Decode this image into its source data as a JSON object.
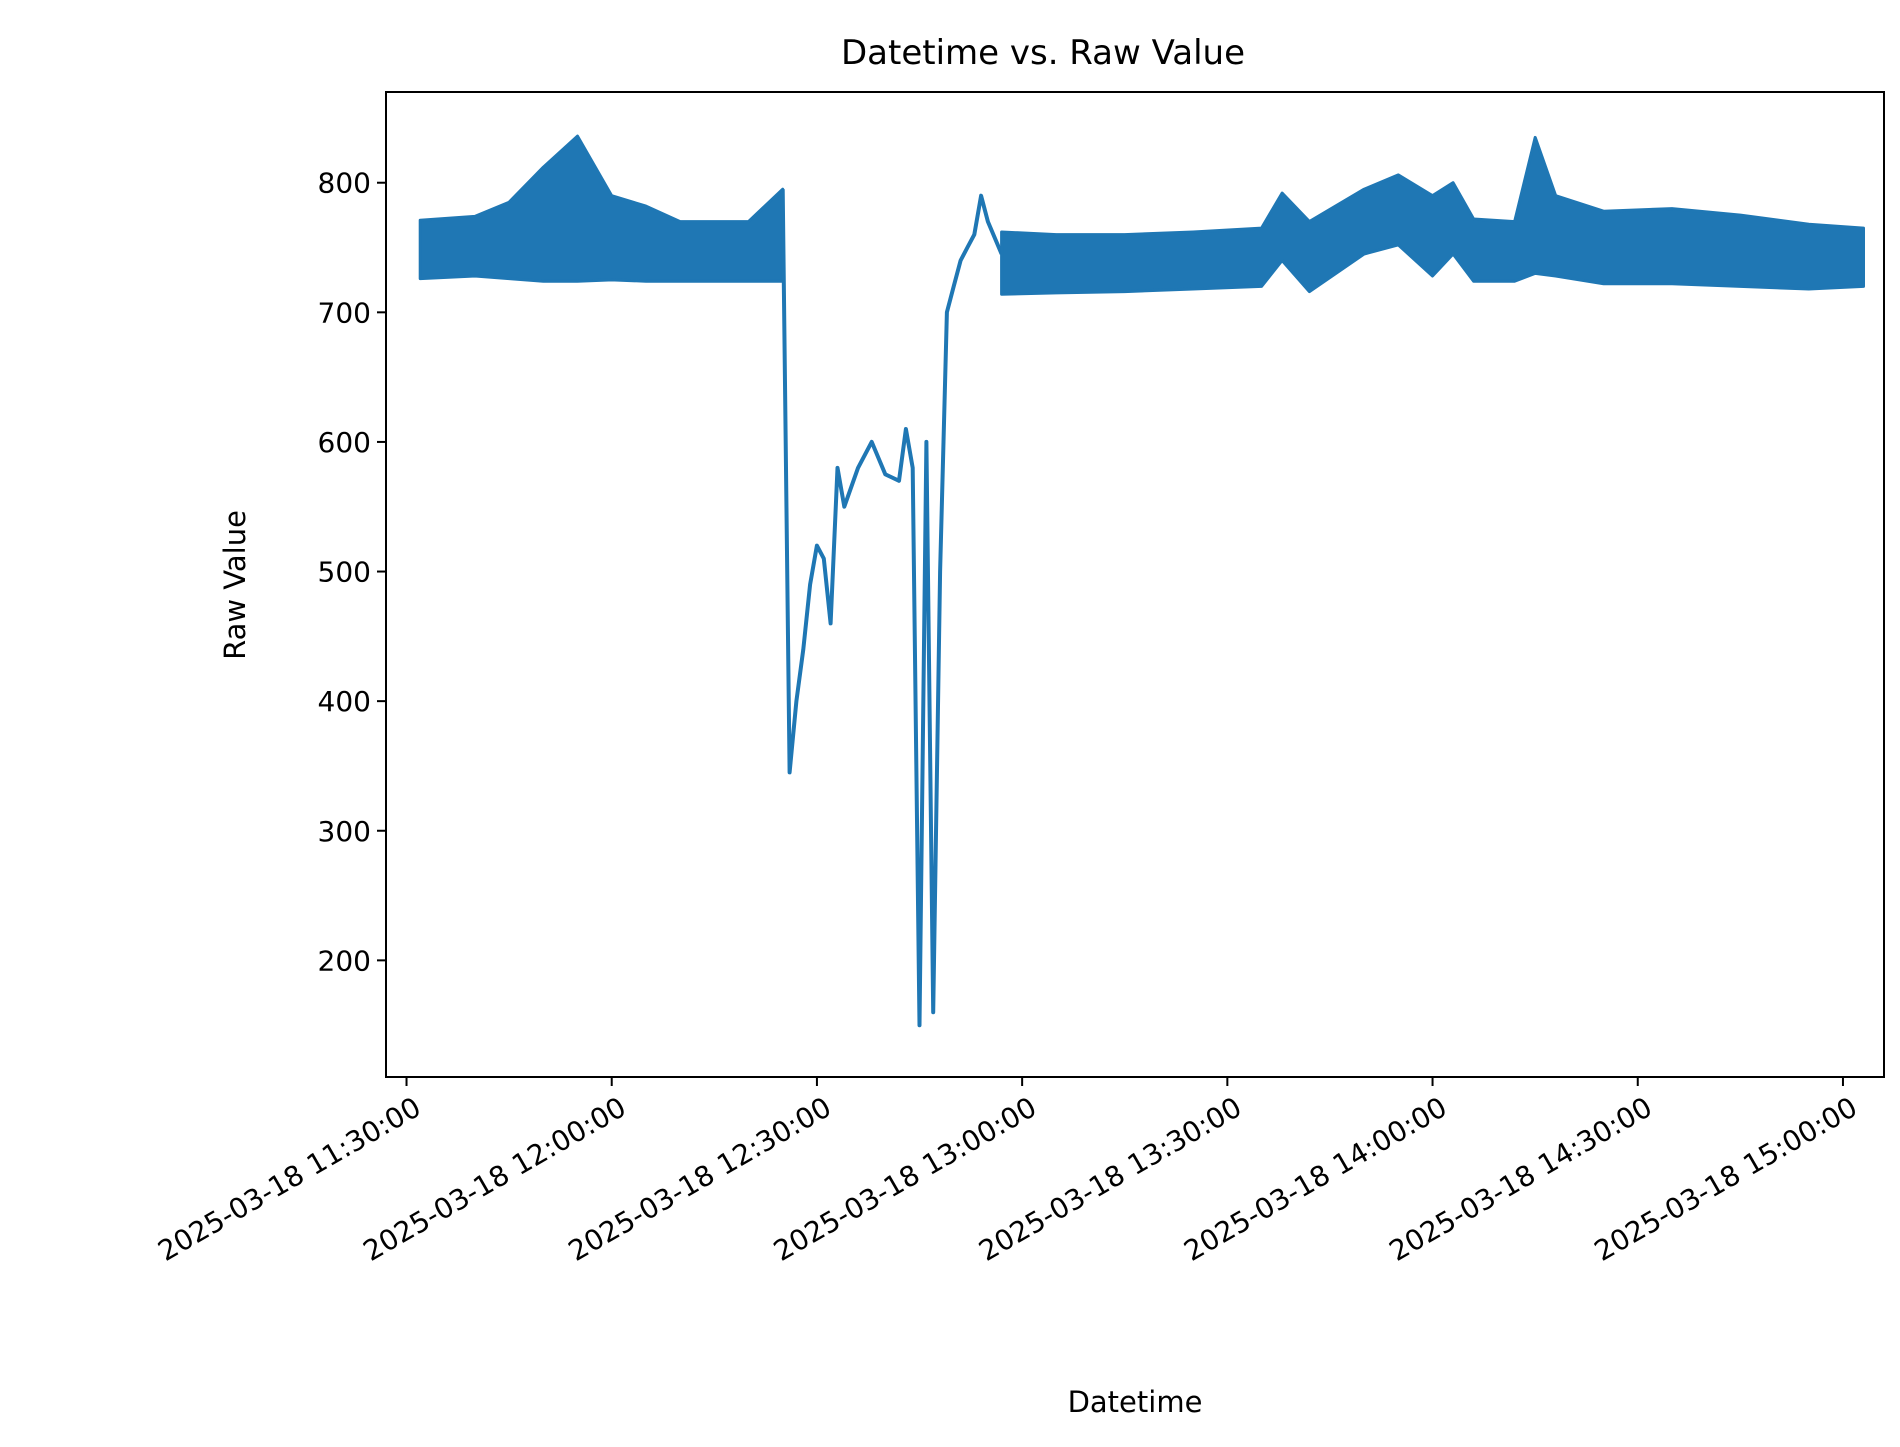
{
  "chart_data": {
    "type": "line",
    "title": "Datetime vs. Raw Value",
    "xlabel": "Datetime",
    "ylabel": "Raw Value",
    "xlim": [
      "2025-03-18 11:27:00",
      "2025-03-18 15:06:00"
    ],
    "ylim": [
      110,
      870
    ],
    "grid": false,
    "legend": "none",
    "colors": {
      "line": "#1f77b4",
      "axes": "#000000",
      "background": "#ffffff"
    },
    "x_ticks": [
      "2025-03-18 11:30:00",
      "2025-03-18 12:00:00",
      "2025-03-18 12:30:00",
      "2025-03-18 13:00:00",
      "2025-03-18 13:30:00",
      "2025-03-18 14:00:00",
      "2025-03-18 14:30:00",
      "2025-03-18 15:00:00"
    ],
    "y_ticks": [
      200,
      300,
      400,
      500,
      600,
      700,
      800
    ],
    "series": [
      {
        "envelope": [
          {
            "x": "2025-03-18 11:32:00",
            "low": 726,
            "high": 771
          },
          {
            "x": "2025-03-18 11:40:00",
            "low": 728,
            "high": 774
          },
          {
            "x": "2025-03-18 11:45:00",
            "low": 726,
            "high": 785
          },
          {
            "x": "2025-03-18 11:50:00",
            "low": 724,
            "high": 812
          },
          {
            "x": "2025-03-18 11:55:00",
            "low": 724,
            "high": 836
          },
          {
            "x": "2025-03-18 12:00:00",
            "low": 725,
            "high": 790
          },
          {
            "x": "2025-03-18 12:05:00",
            "low": 724,
            "high": 782
          },
          {
            "x": "2025-03-18 12:10:00",
            "low": 724,
            "high": 770
          },
          {
            "x": "2025-03-18 12:20:00",
            "low": 724,
            "high": 770
          },
          {
            "x": "2025-03-18 12:25:00",
            "low": 724,
            "high": 795
          }
        ]
      },
      {
        "x": [
          "2025-03-18 12:25:00",
          "2025-03-18 12:26:00",
          "2025-03-18 12:27:00",
          "2025-03-18 12:28:00",
          "2025-03-18 12:29:00",
          "2025-03-18 12:30:00",
          "2025-03-18 12:31:00",
          "2025-03-18 12:32:00",
          "2025-03-18 12:33:00",
          "2025-03-18 12:34:00",
          "2025-03-18 12:36:00",
          "2025-03-18 12:38:00",
          "2025-03-18 12:40:00",
          "2025-03-18 12:42:00",
          "2025-03-18 12:43:00",
          "2025-03-18 12:44:00",
          "2025-03-18 12:45:00",
          "2025-03-18 12:46:00",
          "2025-03-18 12:47:00",
          "2025-03-18 12:48:00",
          "2025-03-18 12:49:00",
          "2025-03-18 12:50:00",
          "2025-03-18 12:51:00",
          "2025-03-18 12:52:00",
          "2025-03-18 12:53:00",
          "2025-03-18 12:54:00",
          "2025-03-18 12:55:00",
          "2025-03-18 12:57:00"
        ],
        "y": [
          795,
          345,
          400,
          440,
          490,
          520,
          510,
          460,
          580,
          550,
          580,
          600,
          575,
          570,
          610,
          580,
          150,
          600,
          160,
          500,
          700,
          720,
          740,
          750,
          760,
          790,
          770,
          745
        ]
      },
      {
        "envelope": [
          {
            "x": "2025-03-18 12:57:00",
            "low": 714,
            "high": 762
          },
          {
            "x": "2025-03-18 13:05:00",
            "low": 715,
            "high": 760
          },
          {
            "x": "2025-03-18 13:15:00",
            "low": 716,
            "high": 760
          },
          {
            "x": "2025-03-18 13:25:00",
            "low": 718,
            "high": 762
          },
          {
            "x": "2025-03-18 13:35:00",
            "low": 720,
            "high": 765
          },
          {
            "x": "2025-03-18 13:38:00",
            "low": 740,
            "high": 792
          },
          {
            "x": "2025-03-18 13:42:00",
            "low": 716,
            "high": 770
          },
          {
            "x": "2025-03-18 13:50:00",
            "low": 745,
            "high": 795
          },
          {
            "x": "2025-03-18 13:55:00",
            "low": 752,
            "high": 806
          },
          {
            "x": "2025-03-18 14:00:00",
            "low": 728,
            "high": 790
          },
          {
            "x": "2025-03-18 14:03:00",
            "low": 745,
            "high": 800
          },
          {
            "x": "2025-03-18 14:06:00",
            "low": 724,
            "high": 772
          },
          {
            "x": "2025-03-18 14:12:00",
            "low": 724,
            "high": 770
          },
          {
            "x": "2025-03-18 14:15:00",
            "low": 730,
            "high": 835
          },
          {
            "x": "2025-03-18 14:18:00",
            "low": 728,
            "high": 790
          },
          {
            "x": "2025-03-18 14:25:00",
            "low": 722,
            "high": 778
          },
          {
            "x": "2025-03-18 14:35:00",
            "low": 722,
            "high": 780
          },
          {
            "x": "2025-03-18 14:45:00",
            "low": 720,
            "high": 775
          },
          {
            "x": "2025-03-18 14:55:00",
            "low": 718,
            "high": 768
          },
          {
            "x": "2025-03-18 15:03:00",
            "low": 720,
            "high": 765
          }
        ]
      }
    ]
  }
}
